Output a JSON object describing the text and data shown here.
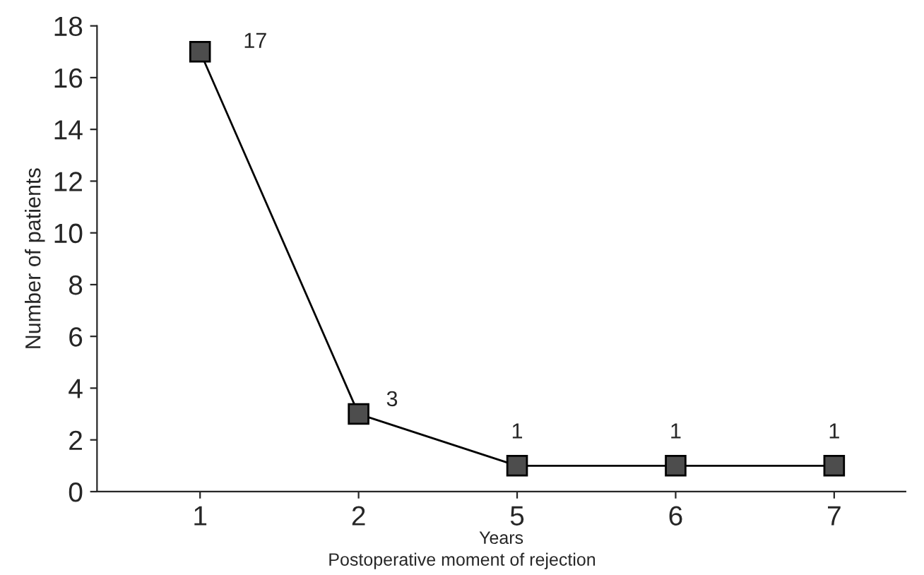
{
  "chart_data": {
    "type": "line",
    "categories": [
      "1",
      "2",
      "5",
      "6",
      "7"
    ],
    "values": [
      17,
      3,
      1,
      1,
      1
    ],
    "color": "#4d4d4d",
    "xlabel": "Years",
    "ylabel": "Number of patients",
    "annotations": [
      "Postoperative moment of rejection"
    ],
    "ylim": [
      0,
      18
    ],
    "yticks": [
      0,
      2,
      4,
      6,
      8,
      10,
      12,
      14,
      16,
      18
    ],
    "data_labels": true,
    "marker": "square",
    "line_style": "solid",
    "grid": false,
    "legend": false
  }
}
